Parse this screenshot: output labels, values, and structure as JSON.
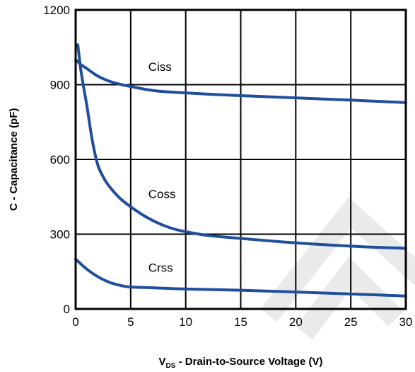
{
  "chart_data": {
    "type": "line",
    "xlabel_prefix": "V",
    "xlabel_sub": "DS",
    "xlabel_rest": " - Drain-to-Source Voltage (V)",
    "ylabel": "C - Capacitance (pF)",
    "xlim": [
      0,
      30
    ],
    "ylim": [
      0,
      1200
    ],
    "x_ticks": [
      "0",
      "5",
      "10",
      "15",
      "20",
      "25",
      "30"
    ],
    "y_ticks": [
      "0",
      "300",
      "600",
      "900",
      "1200"
    ],
    "grid": true,
    "line_color": "#1f4e9e",
    "series": [
      {
        "name": "Ciss",
        "points": [
          [
            0,
            1000
          ],
          [
            0.5,
            980
          ],
          [
            1,
            965
          ],
          [
            2,
            935
          ],
          [
            3,
            915
          ],
          [
            4,
            902
          ],
          [
            5,
            893
          ],
          [
            6,
            884
          ],
          [
            7,
            877
          ],
          [
            8,
            872
          ],
          [
            10,
            867
          ],
          [
            12,
            862
          ],
          [
            15,
            856
          ],
          [
            20,
            847
          ],
          [
            25,
            838
          ],
          [
            30,
            828
          ]
        ]
      },
      {
        "name": "Coss",
        "points": [
          [
            0.2,
            1060
          ],
          [
            0.5,
            950
          ],
          [
            1,
            820
          ],
          [
            1.5,
            680
          ],
          [
            2,
            580
          ],
          [
            2.5,
            530
          ],
          [
            3,
            495
          ],
          [
            4,
            445
          ],
          [
            5,
            410
          ],
          [
            6,
            380
          ],
          [
            7,
            355
          ],
          [
            8,
            335
          ],
          [
            9,
            320
          ],
          [
            10,
            310
          ],
          [
            12,
            295
          ],
          [
            15,
            283
          ],
          [
            20,
            265
          ],
          [
            25,
            252
          ],
          [
            30,
            243
          ]
        ]
      },
      {
        "name": "Crss",
        "points": [
          [
            0,
            200
          ],
          [
            1,
            160
          ],
          [
            2,
            130
          ],
          [
            3,
            108
          ],
          [
            4,
            95
          ],
          [
            5,
            88
          ],
          [
            7,
            85
          ],
          [
            10,
            80
          ],
          [
            15,
            75
          ],
          [
            20,
            68
          ],
          [
            25,
            60
          ],
          [
            30,
            52
          ]
        ]
      }
    ],
    "annotations": [
      {
        "text": "Ciss",
        "x": 6.6,
        "y": 955
      },
      {
        "text": "Coss",
        "x": 6.6,
        "y": 445
      },
      {
        "text": "Crss",
        "x": 6.6,
        "y": 150
      }
    ]
  }
}
